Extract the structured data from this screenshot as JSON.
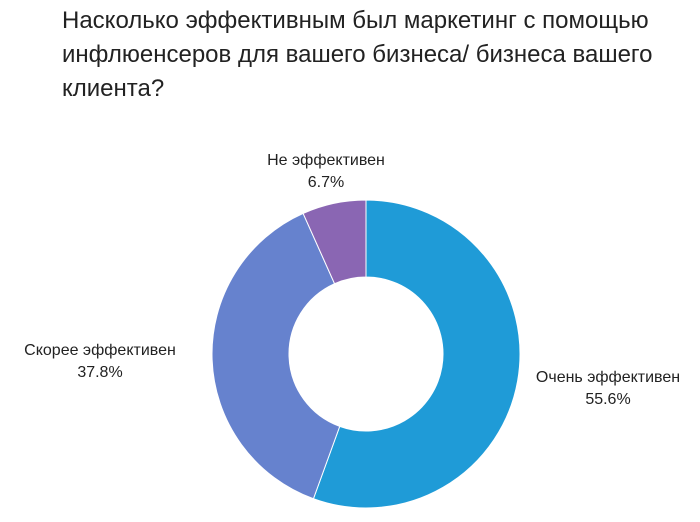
{
  "chart_data": {
    "type": "pie",
    "donut": true,
    "title": "Насколько эффективным был маркетинг с помощью инфлюенсеров для вашего бизнеса/ бизнеса вашего клиента?",
    "slices": [
      {
        "label": "Очень эффективен",
        "value": 55.6,
        "display": "55.6%",
        "color": "#1F9BD7"
      },
      {
        "label": "Скорее эффективен",
        "value": 37.8,
        "display": "37.8%",
        "color": "#6682CE"
      },
      {
        "label": "Не эффективен",
        "value": 6.7,
        "display": "6.7%",
        "color": "#8A66B3"
      }
    ],
    "start": "12 o'clock",
    "direction": "clockwise",
    "legend": "none",
    "labels": "outside"
  }
}
